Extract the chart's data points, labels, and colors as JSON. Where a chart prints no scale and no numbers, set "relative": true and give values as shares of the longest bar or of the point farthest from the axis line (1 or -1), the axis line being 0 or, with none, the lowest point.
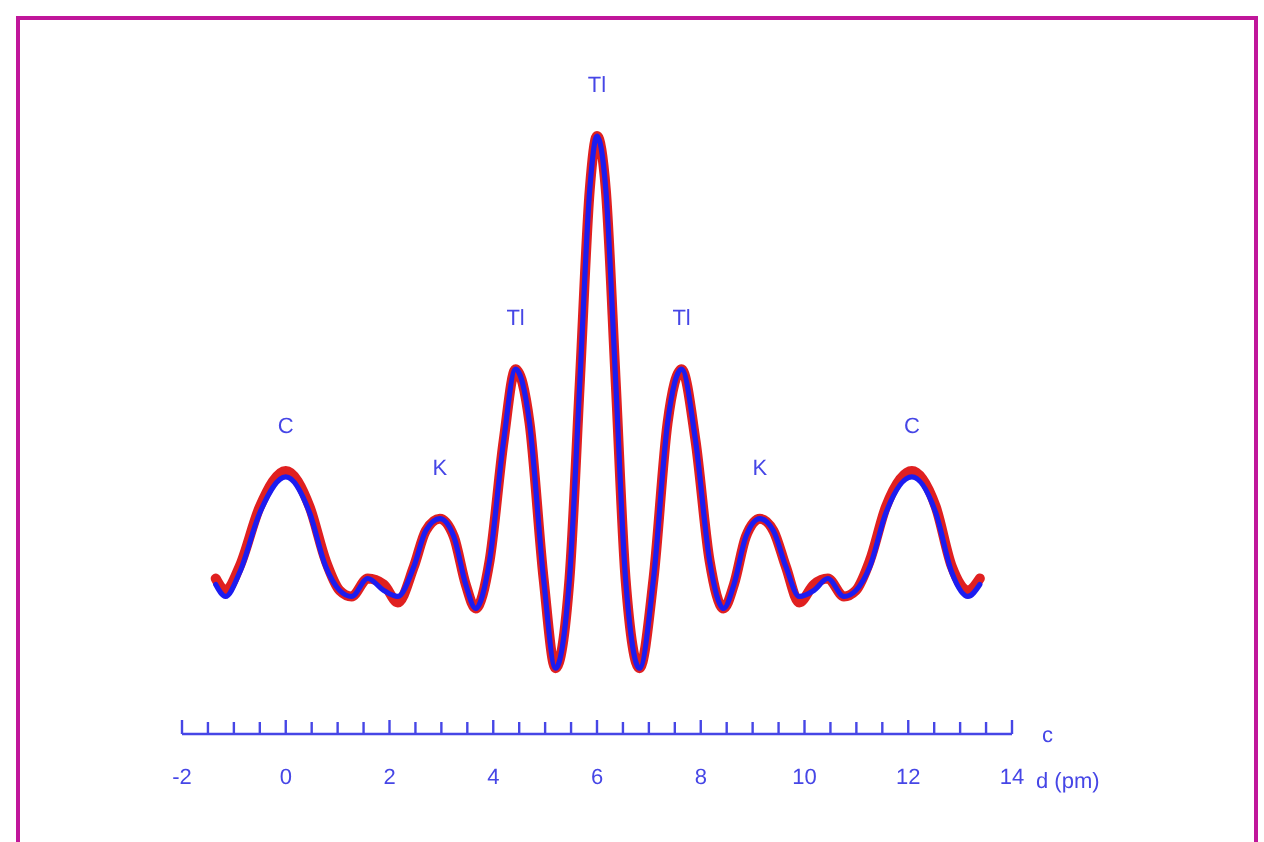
{
  "chart_data": {
    "type": "line",
    "relative": true,
    "xlabel": "d (pm)",
    "x": [
      -1.35,
      -1.16,
      -0.89,
      -0.5,
      0,
      0.46,
      0.77,
      1.04,
      1.27,
      1.58,
      1.89,
      2.16,
      2.47,
      2.7,
      2.97,
      3.24,
      3.47,
      3.66,
      3.93,
      4.2,
      4.43,
      4.7,
      4.97,
      5.2,
      5.47,
      5.67,
      5.86,
      6,
      6.17,
      6.36,
      6.55,
      6.82,
      7.09,
      7.36,
      7.63,
      7.9,
      8.17,
      8.44,
      8.64,
      8.87,
      9.14,
      9.4,
      9.64,
      9.9,
      10.18,
      10.45,
      10.76,
      10.99,
      11.26,
      11.57,
      12.07,
      12.53,
      12.84,
      13.15,
      13.38
    ],
    "series": [
      {
        "color": "#e02020",
        "values": [
          0.26,
          0.24,
          0.28,
          0.38,
          0.44,
          0.38,
          0.29,
          0.24,
          0.23,
          0.26,
          0.25,
          0.22,
          0.28,
          0.34,
          0.36,
          0.33,
          0.25,
          0.21,
          0.29,
          0.49,
          0.61,
          0.52,
          0.26,
          0.11,
          0.26,
          0.59,
          0.91,
          1,
          0.91,
          0.59,
          0.26,
          0.11,
          0.26,
          0.52,
          0.61,
          0.49,
          0.29,
          0.21,
          0.25,
          0.33,
          0.36,
          0.34,
          0.28,
          0.22,
          0.25,
          0.26,
          0.23,
          0.24,
          0.29,
          0.38,
          0.44,
          0.38,
          0.28,
          0.24,
          0.26
        ]
      },
      {
        "color": "#1c1cf0",
        "values": [
          0.25,
          0.23,
          0.27,
          0.37,
          0.43,
          0.37,
          0.28,
          0.24,
          0.23,
          0.26,
          0.24,
          0.23,
          0.28,
          0.34,
          0.36,
          0.33,
          0.25,
          0.21,
          0.29,
          0.49,
          0.61,
          0.52,
          0.26,
          0.11,
          0.26,
          0.59,
          0.91,
          1,
          0.91,
          0.59,
          0.26,
          0.11,
          0.26,
          0.52,
          0.61,
          0.49,
          0.29,
          0.21,
          0.25,
          0.33,
          0.36,
          0.34,
          0.28,
          0.23,
          0.24,
          0.26,
          0.23,
          0.24,
          0.28,
          0.37,
          0.43,
          0.37,
          0.27,
          0.23,
          0.25
        ]
      }
    ],
    "xlim": [
      -2,
      14
    ],
    "xticks": [
      -2,
      {
        "value": -1.5,
        "label": null
      },
      {
        "value": -1,
        "label": null
      },
      {
        "value": -0.5,
        "label": null
      },
      0,
      {
        "value": 0.5,
        "label": null
      },
      {
        "value": 1,
        "label": null
      },
      {
        "value": 1.5,
        "label": null
      },
      2,
      {
        "value": 2.5,
        "label": null
      },
      {
        "value": 3,
        "label": null
      },
      {
        "value": 3.5,
        "label": null
      },
      4,
      {
        "value": 4.5,
        "label": null
      },
      {
        "value": 5,
        "label": null
      },
      {
        "value": 5.5,
        "label": null
      },
      6,
      {
        "value": 6.5,
        "label": null
      },
      {
        "value": 7,
        "label": null
      },
      {
        "value": 7.5,
        "label": null
      },
      8,
      {
        "value": 8.5,
        "label": null
      },
      {
        "value": 9,
        "label": null
      },
      {
        "value": 9.5,
        "label": null
      },
      10,
      {
        "value": 10.5,
        "label": null
      },
      {
        "value": 11,
        "label": null
      },
      {
        "value": 11.5,
        "label": null
      },
      12,
      {
        "value": 12.5,
        "label": null
      },
      {
        "value": 13,
        "label": null
      },
      {
        "value": 13.5,
        "label": null
      },
      14
    ],
    "annotations": [
      {
        "text": "C",
        "x": 0,
        "y": 0.43
      },
      {
        "text": "K",
        "x": 2.97,
        "y": 0.36
      },
      {
        "text": "Tl",
        "x": 4.43,
        "y": 0.61
      },
      {
        "text": "Tl",
        "x": 6,
        "y": 1
      },
      {
        "text": "Tl",
        "x": 7.63,
        "y": 0.61
      },
      {
        "text": "K",
        "x": 9.14,
        "y": 0.36
      },
      {
        "text": "C",
        "x": 12.07,
        "y": 0.43
      },
      "c"
    ],
    "grid": false,
    "marker": "none",
    "line_style": "solid"
  }
}
